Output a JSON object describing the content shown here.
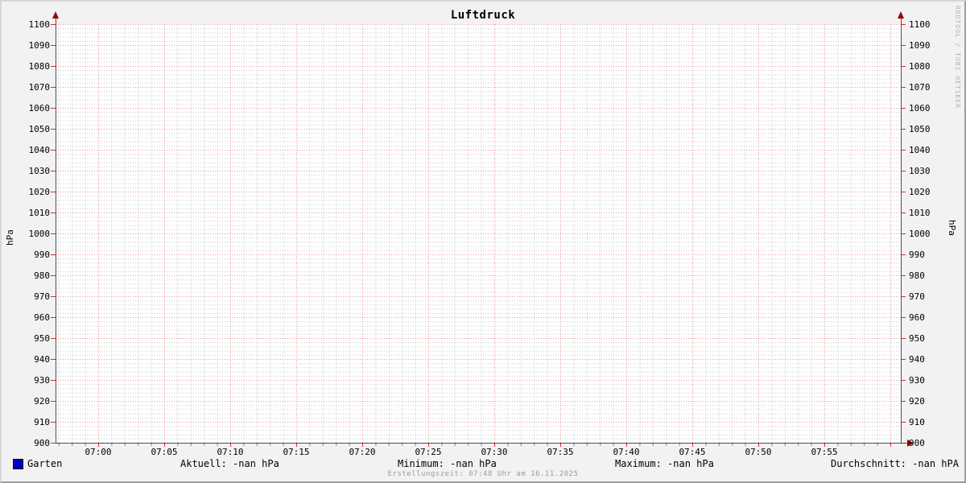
{
  "title": "Luftdruck",
  "watermark": "RRDTOOL / TOBI OETIKER",
  "y_axis": {
    "left_label": "hPa",
    "right_label": "hPa"
  },
  "legend": {
    "series": {
      "label": "Garten",
      "color": "#0000cc"
    },
    "stats": [
      "Aktuell: -nan hPa",
      "Minimum: -nan hPa",
      "Maximum: -nan hPa",
      "Durchschnitt: -nan hPA"
    ]
  },
  "footer": {
    "creation_time": "Erstellungszeit: 07:48 Uhr am 16.11.2025"
  },
  "chart_data": {
    "type": "line",
    "title": "Luftdruck",
    "xlabel": "",
    "ylabel": "hPa",
    "ylim": [
      900,
      1100
    ],
    "y_major_step": 10,
    "y_minor_step": 2,
    "y_ticks": [
      900,
      910,
      920,
      930,
      940,
      950,
      960,
      970,
      980,
      990,
      1000,
      1010,
      1020,
      1030,
      1040,
      1050,
      1060,
      1070,
      1080,
      1090,
      1100
    ],
    "x_ticks": [
      "07:00",
      "07:05",
      "07:10",
      "07:15",
      "07:20",
      "07:25",
      "07:30",
      "07:35",
      "07:40",
      "07:45",
      "07:50",
      "07:55"
    ],
    "x_minor_per_major": 5,
    "grid": true,
    "legend_position": "bottom",
    "colors": {
      "canvas": "#ffffff",
      "background": "#f2f2f2",
      "major_grid": "#cc0000",
      "minor_grid": "#808080",
      "axis": "#3a3a3a",
      "arrow": "#990000"
    },
    "series": [
      {
        "name": "Garten",
        "color": "#0000cc",
        "values": []
      }
    ]
  }
}
